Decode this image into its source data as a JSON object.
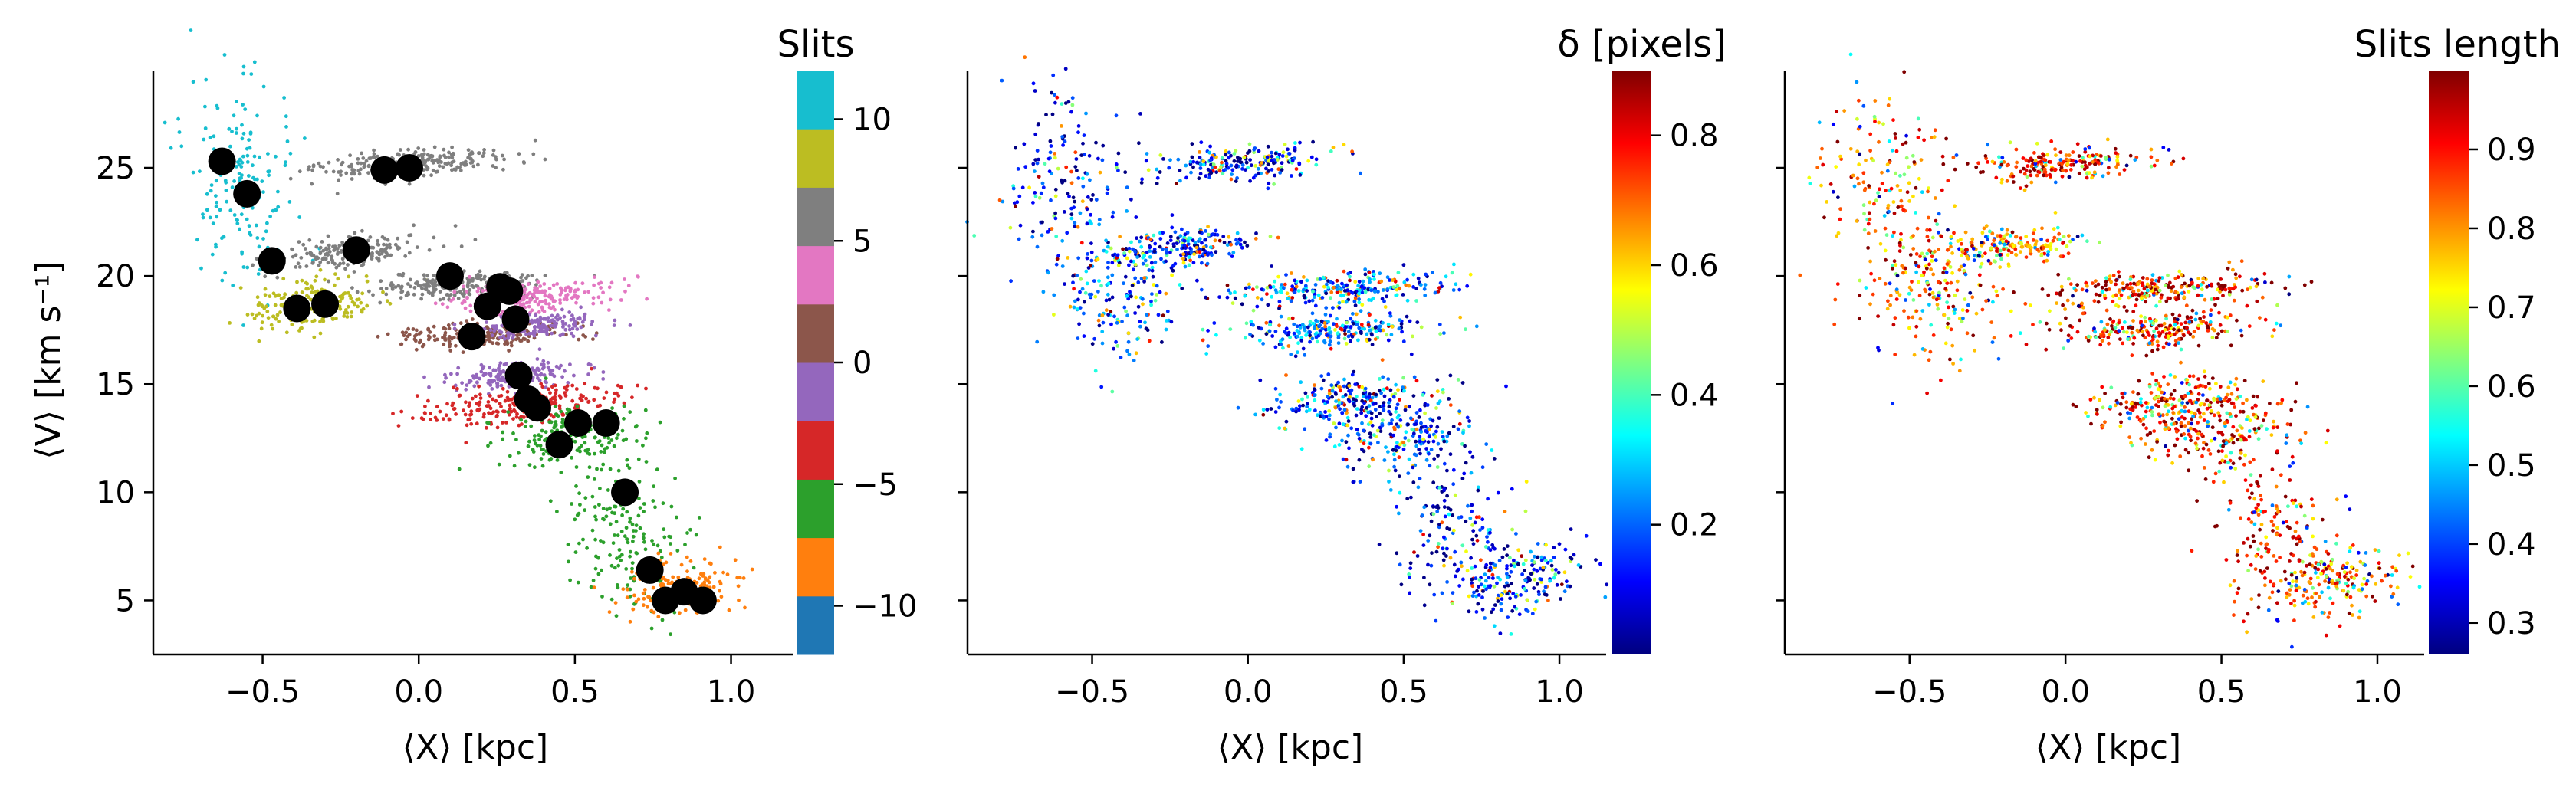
{
  "chart_data": [
    {
      "type": "scatter",
      "panel": "left",
      "xlabel": "⟨X⟩ [kpc]",
      "ylabel": "⟨V⟩ [km s⁻¹]",
      "xlim": [
        -0.85,
        1.2
      ],
      "ylim": [
        2.5,
        29.5
      ],
      "xticks": [
        -0.5,
        0.0,
        0.5,
        1.0
      ],
      "xtick_labels": [
        "−0.5",
        "0.0",
        "0.5",
        "1.0"
      ],
      "yticks": [
        5,
        10,
        15,
        20,
        25
      ],
      "ytick_labels": [
        "5",
        "10",
        "15",
        "20",
        "25"
      ],
      "colorbar": {
        "title": "Slits",
        "type": "discrete",
        "range": [
          -12,
          12
        ],
        "ticks": [
          -10,
          -5,
          0,
          5,
          10
        ],
        "tick_labels": [
          "−10",
          "−5",
          "0",
          "5",
          "10"
        ],
        "colors": [
          "#1f77b4",
          "#ff7f0e",
          "#2ca02c",
          "#d62728",
          "#9467bd",
          "#8c564b",
          "#e377c2",
          "#7f7f7f",
          "#bcbd22",
          "#17becf"
        ]
      },
      "marker_color": "#000000",
      "markers": [
        {
          "x": -0.63,
          "y": 25.3
        },
        {
          "x": -0.55,
          "y": 23.8
        },
        {
          "x": -0.47,
          "y": 20.7
        },
        {
          "x": -0.39,
          "y": 18.5
        },
        {
          "x": -0.3,
          "y": 18.7
        },
        {
          "x": -0.2,
          "y": 21.2
        },
        {
          "x": -0.11,
          "y": 24.9
        },
        {
          "x": -0.03,
          "y": 25.0
        },
        {
          "x": 0.1,
          "y": 20.0
        },
        {
          "x": 0.17,
          "y": 17.2
        },
        {
          "x": 0.22,
          "y": 18.6
        },
        {
          "x": 0.26,
          "y": 19.5
        },
        {
          "x": 0.29,
          "y": 19.3
        },
        {
          "x": 0.31,
          "y": 18.0
        },
        {
          "x": 0.32,
          "y": 15.4
        },
        {
          "x": 0.35,
          "y": 14.3
        },
        {
          "x": 0.38,
          "y": 13.9
        },
        {
          "x": 0.45,
          "y": 12.2
        },
        {
          "x": 0.51,
          "y": 13.2
        },
        {
          "x": 0.6,
          "y": 13.2
        },
        {
          "x": 0.66,
          "y": 10.0
        },
        {
          "x": 0.74,
          "y": 6.4
        },
        {
          "x": 0.79,
          "y": 5.0
        },
        {
          "x": 0.85,
          "y": 5.4
        },
        {
          "x": 0.91,
          "y": 5.0
        }
      ],
      "point_groups": [
        {
          "slit": 11,
          "cx": -0.57,
          "cy": 24.2,
          "sx": 0.09,
          "sy": 2.2,
          "slope": -10
        },
        {
          "slit": 9,
          "cx": -0.34,
          "cy": 18.7,
          "sx": 0.11,
          "sy": 0.6,
          "slope": 6
        },
        {
          "slit": 7,
          "cx": -0.02,
          "cy": 25.2,
          "sx": 0.16,
          "sy": 0.35,
          "slope": 4
        },
        {
          "slit": 7,
          "cx": -0.22,
          "cy": 21.1,
          "sx": 0.12,
          "sy": 0.35,
          "slope": 6
        },
        {
          "slit": 5,
          "cx": 0.12,
          "cy": 19.6,
          "sx": 0.13,
          "sy": 0.3,
          "slope": 2
        },
        {
          "slit": 3,
          "cx": 0.35,
          "cy": 19.0,
          "sx": 0.14,
          "sy": 0.35,
          "slope": 3
        },
        {
          "slit": 1,
          "cx": 0.2,
          "cy": 17.3,
          "sx": 0.13,
          "sy": 0.3,
          "slope": 2
        },
        {
          "slit": -1,
          "cx": 0.38,
          "cy": 17.7,
          "sx": 0.1,
          "sy": 0.3,
          "slope": 3
        },
        {
          "slit": -1,
          "cx": 0.3,
          "cy": 15.4,
          "sx": 0.1,
          "sy": 0.3,
          "slope": 3
        },
        {
          "slit": -3,
          "cx": 0.33,
          "cy": 14.0,
          "sx": 0.16,
          "sy": 0.45,
          "slope": 4
        },
        {
          "slit": -5,
          "cx": 0.47,
          "cy": 12.7,
          "sx": 0.11,
          "sy": 0.7,
          "slope": 5
        },
        {
          "slit": -7,
          "cx": 0.66,
          "cy": 8.3,
          "sx": 0.1,
          "sy": 1.9,
          "slope": -13
        },
        {
          "slit": -9,
          "cx": 0.84,
          "cy": 5.6,
          "sx": 0.1,
          "sy": 0.6,
          "slope": 8
        }
      ]
    },
    {
      "type": "scatter",
      "panel": "middle",
      "xlabel": "⟨X⟩ [kpc]",
      "xlim": [
        -0.9,
        1.15
      ],
      "ylim": [
        2.5,
        29.5
      ],
      "xticks": [
        -0.5,
        0.0,
        0.5,
        1.0
      ],
      "xtick_labels": [
        "−0.5",
        "0.0",
        "0.5",
        "1.0"
      ],
      "yticks": [
        5,
        10,
        15,
        20,
        25
      ],
      "colorbar": {
        "title": "δ [pixels]",
        "colormap": "jet",
        "range": [
          0.0,
          0.9
        ],
        "ticks": [
          0.2,
          0.4,
          0.6,
          0.8
        ],
        "tick_labels": [
          "0.2",
          "0.4",
          "0.6",
          "0.8"
        ]
      },
      "point_groups": [
        {
          "cx": -0.58,
          "cy": 24.3,
          "sx": 0.1,
          "sy": 2.1,
          "slope": -10,
          "value_mean": 0.1
        },
        {
          "cx": -0.02,
          "cy": 25.2,
          "sx": 0.14,
          "sy": 0.4,
          "slope": 4,
          "value_mean": 0.12
        },
        {
          "cx": -0.42,
          "cy": 19.0,
          "sx": 0.12,
          "sy": 1.5,
          "slope": -6,
          "value_mean": 0.18
        },
        {
          "cx": -0.2,
          "cy": 21.4,
          "sx": 0.12,
          "sy": 0.4,
          "slope": 5,
          "value_mean": 0.15
        },
        {
          "cx": 0.3,
          "cy": 19.4,
          "sx": 0.18,
          "sy": 0.4,
          "slope": 3,
          "value_mean": 0.2
        },
        {
          "cx": 0.28,
          "cy": 17.5,
          "sx": 0.16,
          "sy": 0.4,
          "slope": 3,
          "value_mean": 0.2
        },
        {
          "cx": 0.33,
          "cy": 14.2,
          "sx": 0.14,
          "sy": 0.6,
          "slope": 4,
          "value_mean": 0.15
        },
        {
          "cx": 0.5,
          "cy": 12.8,
          "sx": 0.12,
          "sy": 0.9,
          "slope": 5,
          "value_mean": 0.15
        },
        {
          "cx": 0.66,
          "cy": 8.6,
          "sx": 0.1,
          "sy": 1.9,
          "slope": -12,
          "value_mean": 0.1
        },
        {
          "cx": 0.86,
          "cy": 5.8,
          "sx": 0.12,
          "sy": 0.8,
          "slope": 7,
          "value_mean": 0.12
        }
      ]
    },
    {
      "type": "scatter",
      "panel": "right",
      "xlabel": "⟨X⟩ [kpc]",
      "xlim": [
        -0.9,
        1.15
      ],
      "ylim": [
        2.5,
        29.5
      ],
      "xticks": [
        -0.5,
        0.0,
        0.5,
        1.0
      ],
      "xtick_labels": [
        "−0.5",
        "0.0",
        "0.5",
        "1.0"
      ],
      "yticks": [
        5,
        10,
        15,
        20,
        25
      ],
      "colorbar": {
        "title": "Slits length",
        "colormap": "jet",
        "range": [
          0.26,
          1.0
        ],
        "ticks": [
          0.3,
          0.4,
          0.5,
          0.6,
          0.7,
          0.8,
          0.9
        ],
        "tick_labels": [
          "0.3",
          "0.4",
          "0.5",
          "0.6",
          "0.7",
          "0.8",
          "0.9"
        ]
      },
      "point_groups": [
        {
          "cx": -0.58,
          "cy": 24.3,
          "sx": 0.1,
          "sy": 2.1,
          "slope": -10,
          "value_mean": 0.85
        },
        {
          "cx": -0.02,
          "cy": 25.2,
          "sx": 0.14,
          "sy": 0.4,
          "slope": 4,
          "value_mean": 0.9
        },
        {
          "cx": -0.42,
          "cy": 19.0,
          "sx": 0.12,
          "sy": 1.5,
          "slope": -6,
          "value_mean": 0.85
        },
        {
          "cx": -0.2,
          "cy": 21.4,
          "sx": 0.12,
          "sy": 0.4,
          "slope": 5,
          "value_mean": 0.8
        },
        {
          "cx": 0.3,
          "cy": 19.4,
          "sx": 0.18,
          "sy": 0.4,
          "slope": 3,
          "value_mean": 0.92
        },
        {
          "cx": 0.28,
          "cy": 17.5,
          "sx": 0.16,
          "sy": 0.4,
          "slope": 3,
          "value_mean": 0.92
        },
        {
          "cx": 0.33,
          "cy": 14.2,
          "sx": 0.14,
          "sy": 0.6,
          "slope": 4,
          "value_mean": 0.9
        },
        {
          "cx": 0.5,
          "cy": 12.8,
          "sx": 0.12,
          "sy": 0.9,
          "slope": 5,
          "value_mean": 0.9
        },
        {
          "cx": 0.66,
          "cy": 8.6,
          "sx": 0.1,
          "sy": 1.9,
          "slope": -12,
          "value_mean": 0.9
        },
        {
          "cx": 0.86,
          "cy": 5.8,
          "sx": 0.12,
          "sy": 0.8,
          "slope": 7,
          "value_mean": 0.85
        }
      ]
    }
  ]
}
